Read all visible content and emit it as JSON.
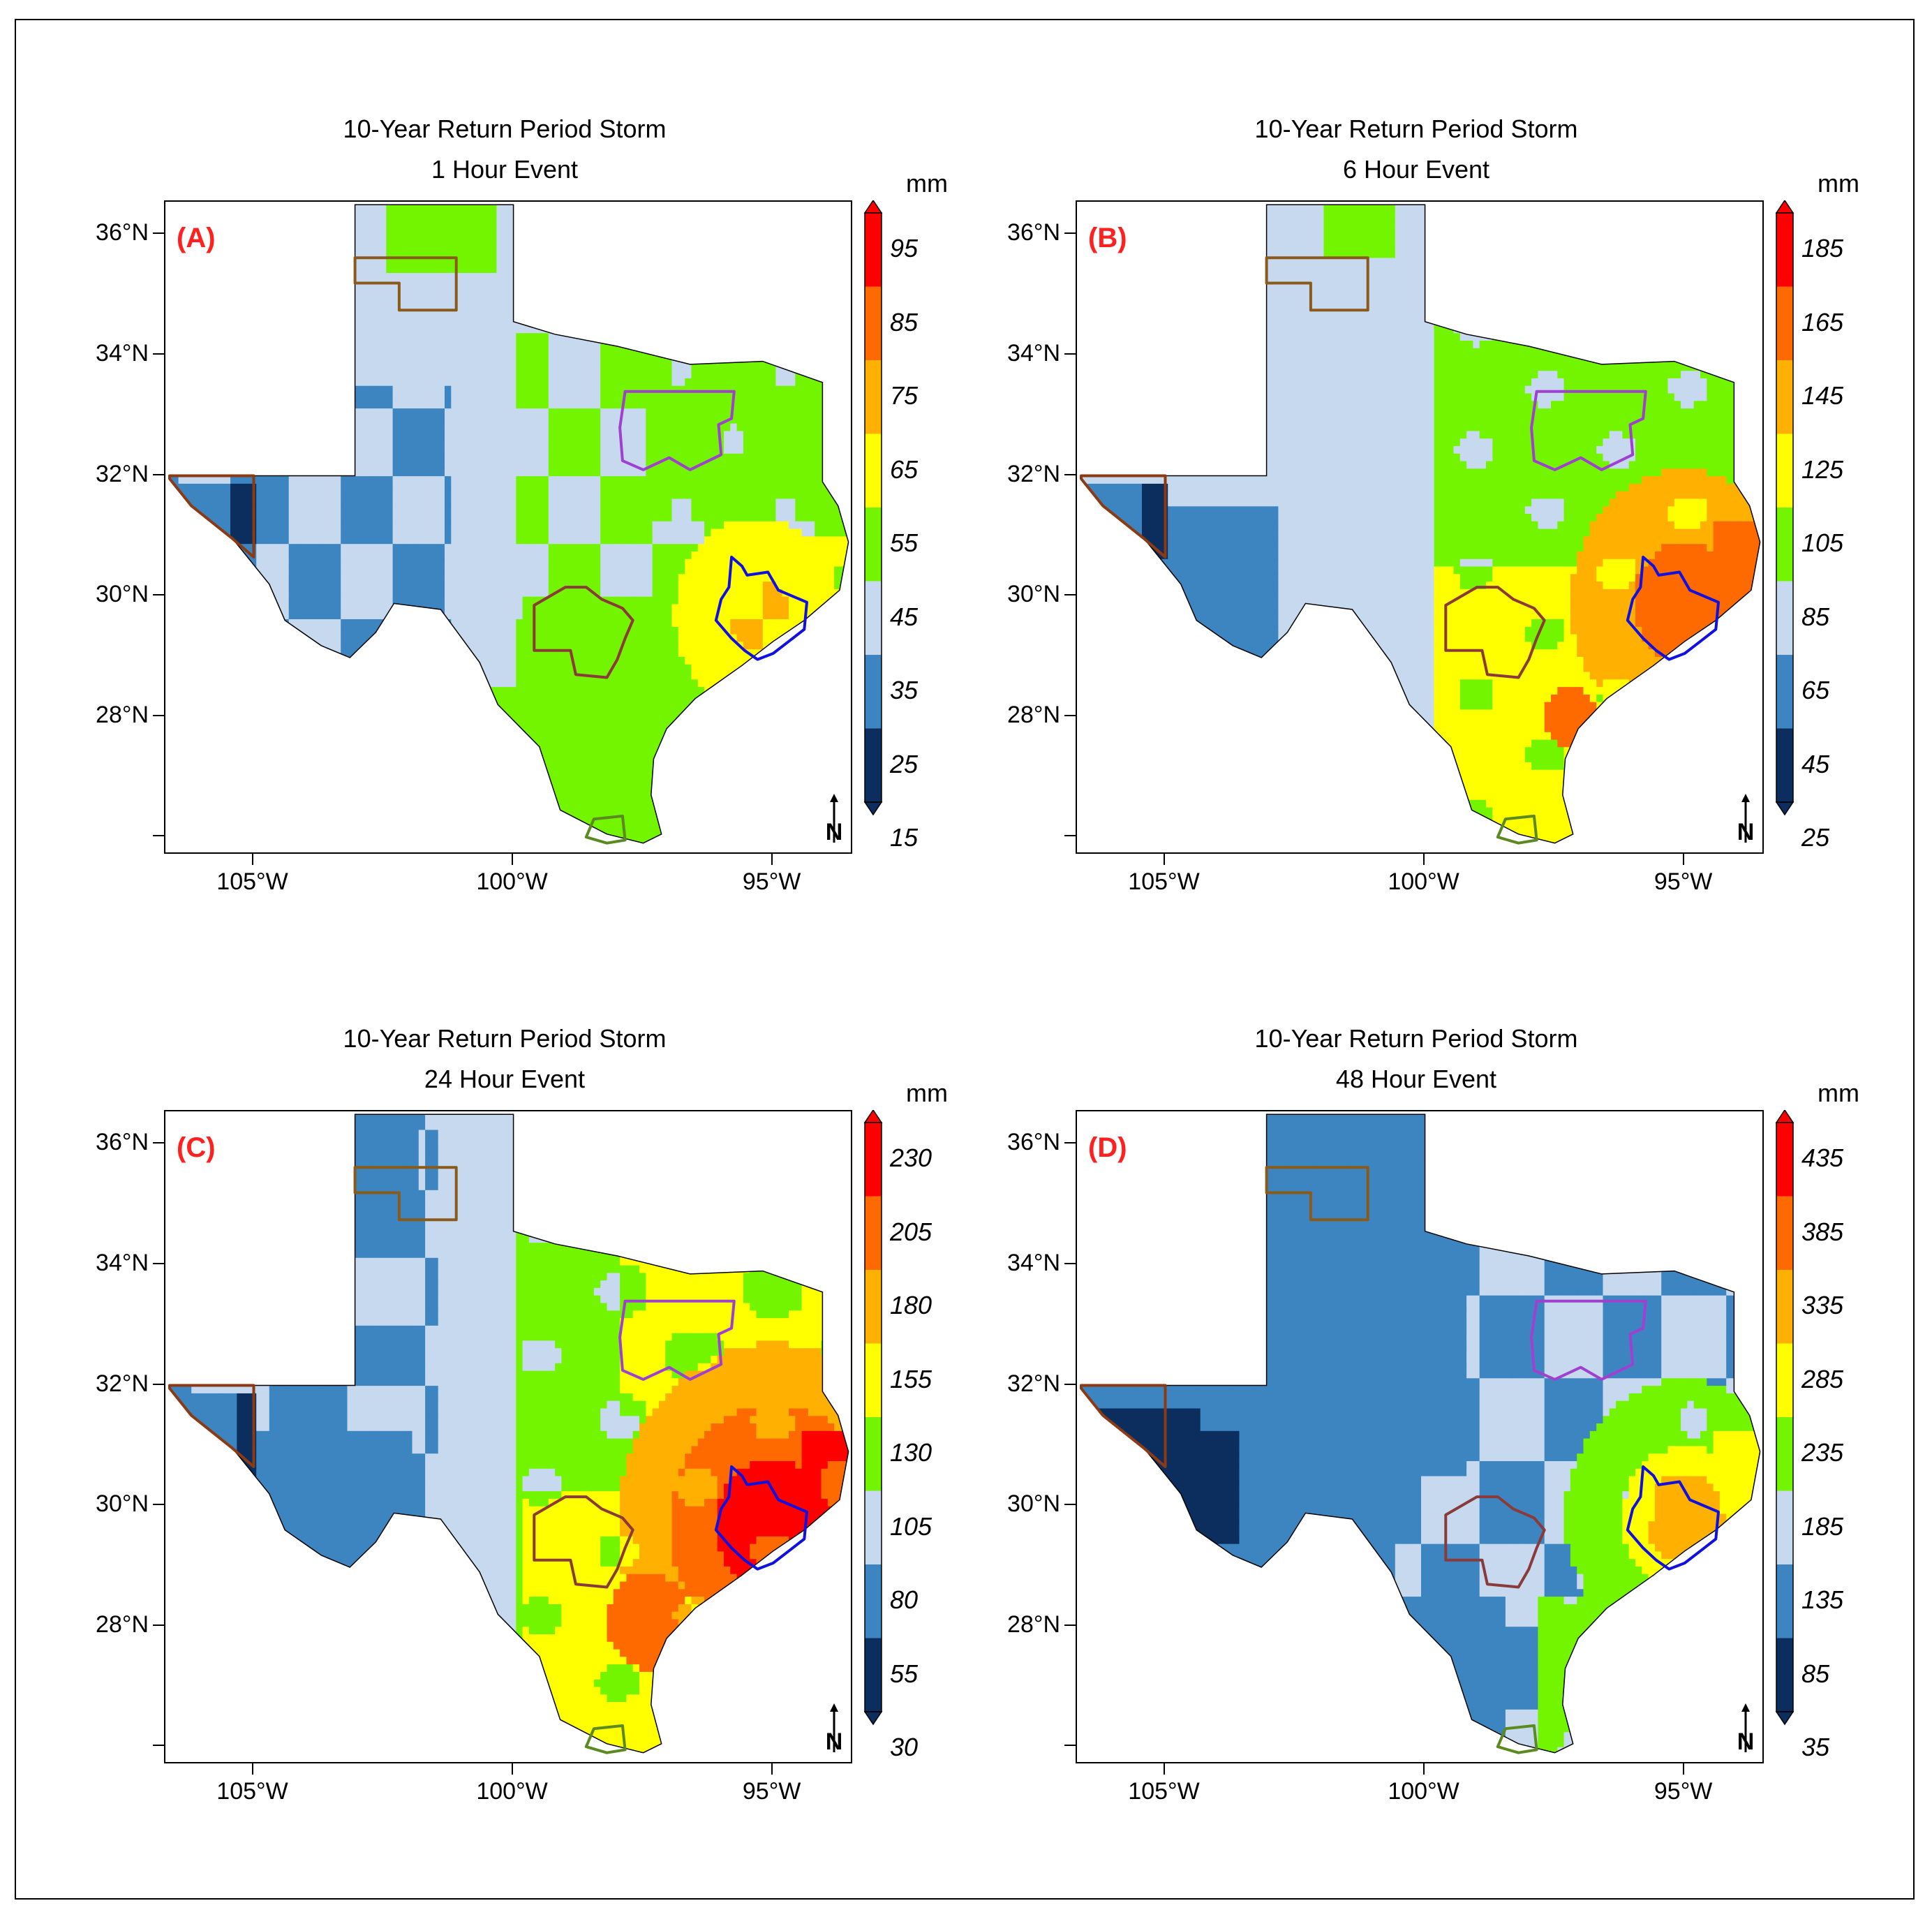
{
  "colors": {
    "c1": "#0b2e5e",
    "c2": "#3d85c0",
    "c3": "#c6d9ef",
    "c4": "#74f500",
    "c5": "#ffff00",
    "c6": "#ffb000",
    "c7": "#ff6a00",
    "c8": "#ff0000",
    "border_panhandle": "#8a5a1a",
    "border_dfw": "#a040d0",
    "border_houston": "#1010e0",
    "border_sa": "#8b3a3a",
    "border_rgv": "#5a8a20",
    "border_elpaso": "#8b3a14",
    "panel_label": "#ff2020"
  },
  "axes": {
    "lat_labels": [
      "36°N",
      "34°N",
      "32°N",
      "30°N",
      "28°N"
    ],
    "lon_labels": [
      "105°W",
      "100°W",
      "95°W"
    ],
    "lat_values": [
      36,
      34,
      32,
      30,
      28
    ],
    "lon_values": [
      -105,
      -100,
      -95
    ]
  },
  "panels": [
    {
      "id": "a",
      "label": "(A)",
      "title_line1": "10-Year Return Period Storm",
      "title_line2": "1 Hour Event",
      "unit": "mm",
      "colorbar_labels": [
        "95",
        "85",
        "75",
        "65",
        "55",
        "45",
        "35",
        "25",
        "15"
      ],
      "colorbar_values": [
        95,
        85,
        75,
        65,
        55,
        45,
        35,
        25,
        15
      ]
    },
    {
      "id": "b",
      "label": "(B)",
      "title_line1": "10-Year Return Period Storm",
      "title_line2": "6 Hour Event",
      "unit": "mm",
      "colorbar_labels": [
        "185",
        "165",
        "145",
        "125",
        "105",
        "85",
        "65",
        "45",
        "25"
      ],
      "colorbar_values": [
        185,
        165,
        145,
        125,
        105,
        85,
        65,
        45,
        25
      ]
    },
    {
      "id": "c",
      "label": "(C)",
      "title_line1": "10-Year Return Period Storm",
      "title_line2": "24 Hour Event",
      "unit": "mm",
      "colorbar_labels": [
        "230",
        "205",
        "180",
        "155",
        "130",
        "105",
        "80",
        "55",
        "30"
      ],
      "colorbar_values": [
        230,
        205,
        180,
        155,
        130,
        105,
        80,
        55,
        30
      ]
    },
    {
      "id": "d",
      "label": "(D)",
      "title_line1": "10-Year Return Period Storm",
      "title_line2": "48 Hour Event",
      "unit": "mm",
      "colorbar_labels": [
        "435",
        "385",
        "335",
        "285",
        "235",
        "185",
        "135",
        "85",
        "35"
      ],
      "colorbar_values": [
        435,
        385,
        335,
        285,
        235,
        185,
        135,
        85,
        35
      ]
    }
  ],
  "north_arrow": "N"
}
